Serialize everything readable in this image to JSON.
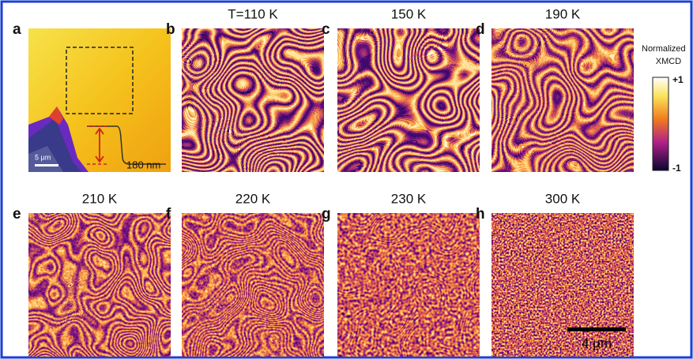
{
  "panels": [
    {
      "letter": "a"
    },
    {
      "letter": "b",
      "label": "T=110 K"
    },
    {
      "letter": "c",
      "label": "150 K"
    },
    {
      "letter": "d",
      "label": "190 K"
    },
    {
      "letter": "e",
      "label": "210 K"
    },
    {
      "letter": "f",
      "label": "220 K"
    },
    {
      "letter": "g",
      "label": "230 K"
    },
    {
      "letter": "h",
      "label": "300 K"
    }
  ],
  "panel_a": {
    "scale_bar": "5 µm",
    "step_height": "180 nm"
  },
  "colorbar": {
    "title_line1": "Normalized",
    "title_line2": "XMCD",
    "max": "+1",
    "min": "-1"
  },
  "scale_bar": "4 µm"
}
